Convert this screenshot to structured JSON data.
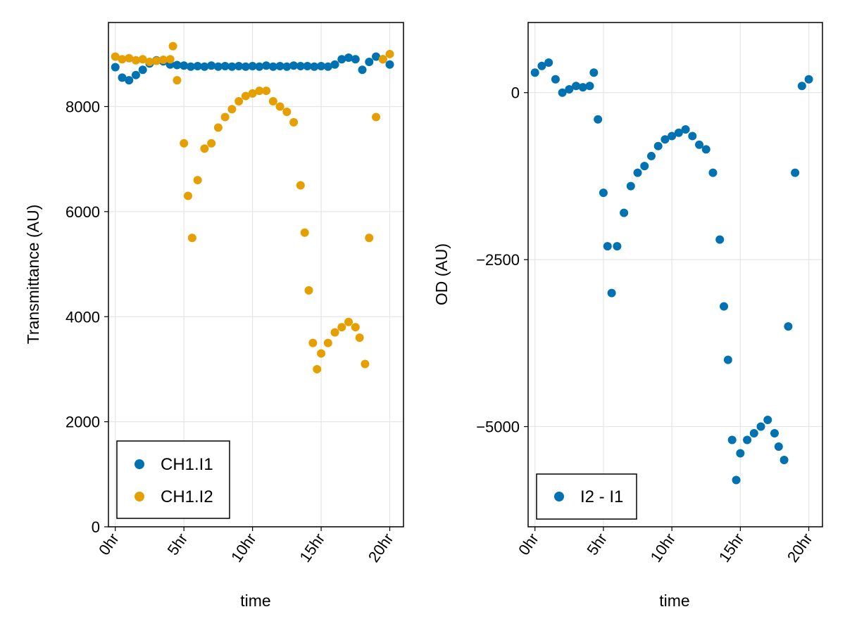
{
  "chart_data": [
    {
      "type": "scatter",
      "title": "",
      "xlabel": "time",
      "ylabel": "Transmittance (AU)",
      "xlim": [
        -0.5,
        21
      ],
      "ylim": [
        0,
        9600
      ],
      "x_ticks": [
        0,
        5,
        10,
        15,
        20
      ],
      "x_tick_labels": [
        "0hr",
        "5hr",
        "10hr",
        "15hr",
        "20hr"
      ],
      "y_ticks": [
        0,
        2000,
        4000,
        6000,
        8000
      ],
      "y_tick_labels": [
        "0",
        "2000",
        "4000",
        "6000",
        "8000"
      ],
      "grid": true,
      "legend_position": "bottom-left",
      "series": [
        {
          "name": "CH1.I1",
          "color": "#0072b2",
          "x": [
            0,
            0.5,
            1,
            1.5,
            2,
            2.5,
            3,
            3.5,
            4,
            4.5,
            5,
            5.5,
            6,
            6.5,
            7,
            7.5,
            8,
            8.5,
            9,
            9.5,
            10,
            10.5,
            11,
            11.5,
            12,
            12.5,
            13,
            13.5,
            14,
            14.5,
            15,
            15.5,
            16,
            16.5,
            17,
            17.5,
            18,
            18.5,
            19,
            19.5,
            20
          ],
          "y": [
            8750,
            8550,
            8500,
            8600,
            8700,
            8820,
            8880,
            8860,
            8800,
            8790,
            8780,
            8760,
            8770,
            8760,
            8780,
            8760,
            8770,
            8760,
            8770,
            8760,
            8770,
            8760,
            8780,
            8760,
            8770,
            8760,
            8780,
            8770,
            8770,
            8760,
            8770,
            8760,
            8800,
            8900,
            8930,
            8900,
            8700,
            8850,
            8950,
            8900,
            8800
          ]
        },
        {
          "name": "CH1.I2",
          "color": "#e69f00",
          "x": [
            0,
            0.5,
            1,
            1.5,
            2,
            2.5,
            3,
            3.5,
            4,
            4.2,
            4.5,
            5,
            5.3,
            5.6,
            6,
            6.5,
            7,
            7.5,
            8,
            8.5,
            9,
            9.5,
            10,
            10.5,
            11,
            11.5,
            12,
            12.5,
            13,
            13.5,
            13.8,
            14.1,
            14.4,
            14.7,
            15,
            15.5,
            16,
            16.5,
            17,
            17.5,
            17.8,
            18.2,
            18.5,
            19,
            19.5,
            20
          ],
          "y": [
            8950,
            8900,
            8920,
            8880,
            8900,
            8850,
            8870,
            8890,
            8900,
            9150,
            8500,
            7300,
            6300,
            5500,
            6600,
            7200,
            7300,
            7600,
            7800,
            7950,
            8100,
            8200,
            8250,
            8300,
            8300,
            8100,
            8000,
            7900,
            7700,
            6500,
            5600,
            4500,
            3500,
            3000,
            3300,
            3500,
            3700,
            3800,
            3900,
            3800,
            3600,
            3100,
            5500,
            7800,
            8900,
            9000
          ]
        }
      ]
    },
    {
      "type": "scatter",
      "title": "",
      "xlabel": "time",
      "ylabel": "OD (AU)",
      "xlim": [
        -0.5,
        21
      ],
      "ylim": [
        -6500,
        1050
      ],
      "x_ticks": [
        0,
        5,
        10,
        15,
        20
      ],
      "x_tick_labels": [
        "0hr",
        "5hr",
        "10hr",
        "15hr",
        "20hr"
      ],
      "y_ticks": [
        -5000,
        -2500,
        0
      ],
      "y_tick_labels": [
        "−5000",
        "−2500",
        "0"
      ],
      "grid": true,
      "legend_position": "bottom-left",
      "series": [
        {
          "name": "I2 - I1",
          "color": "#0072b2",
          "x": [
            0,
            0.5,
            1,
            1.5,
            2,
            2.5,
            3,
            3.5,
            4,
            4.3,
            4.6,
            5,
            5.3,
            5.6,
            6,
            6.5,
            7,
            7.5,
            8,
            8.5,
            9,
            9.5,
            10,
            10.5,
            11,
            11.5,
            12,
            12.5,
            13,
            13.5,
            13.8,
            14.1,
            14.4,
            14.7,
            15,
            15.5,
            16,
            16.5,
            17,
            17.5,
            17.8,
            18.2,
            18.5,
            19,
            19.5,
            20
          ],
          "y": [
            300,
            400,
            450,
            200,
            0,
            50,
            100,
            80,
            100,
            300,
            -400,
            -1500,
            -2300,
            -3000,
            -2300,
            -1800,
            -1400,
            -1200,
            -1100,
            -950,
            -800,
            -700,
            -650,
            -600,
            -550,
            -650,
            -780,
            -850,
            -1200,
            -2200,
            -3200,
            -4000,
            -5200,
            -5800,
            -5400,
            -5200,
            -5100,
            -5000,
            -4900,
            -5100,
            -5300,
            -5500,
            -3500,
            -1200,
            100,
            200
          ]
        }
      ]
    }
  ]
}
